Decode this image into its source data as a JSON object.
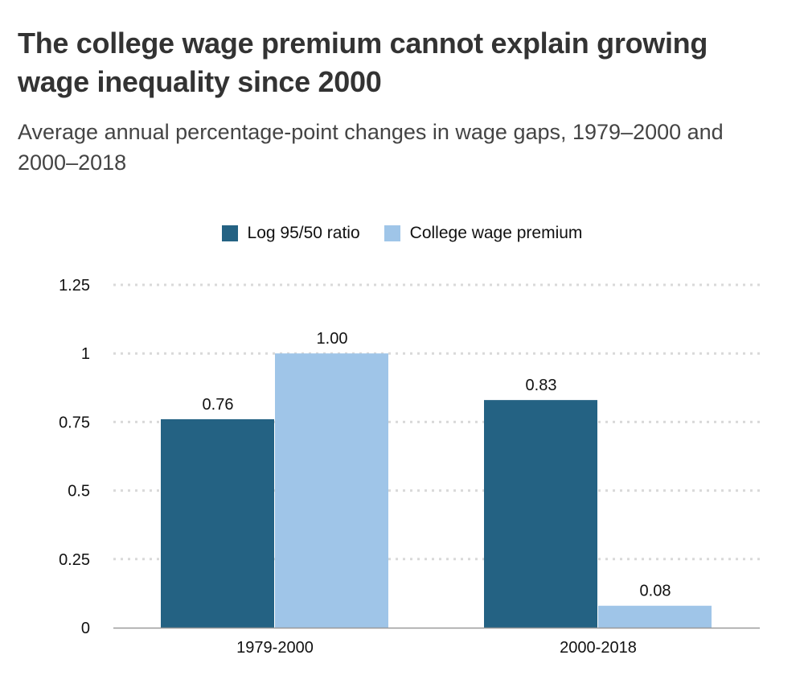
{
  "chart_data": {
    "type": "bar",
    "title": "The college wage premium cannot explain growing wage inequality since 2000",
    "subtitle": "Average annual percentage-point changes in wage gaps, 1979–2000 and 2000–2018",
    "xlabel": "",
    "ylabel": "",
    "categories": [
      "1979-2000",
      "2000-2018"
    ],
    "series": [
      {
        "name": "Log 95/50 ratio",
        "color": "#246283",
        "values": [
          0.76,
          0.83
        ],
        "labels": [
          "0.76",
          "0.83"
        ]
      },
      {
        "name": "College wage premium",
        "color": "#9fc5e8",
        "values": [
          1.0,
          0.08
        ],
        "labels": [
          "1.00",
          "0.08"
        ]
      }
    ],
    "ylim": [
      0,
      1.25
    ],
    "yticks": [
      0,
      0.25,
      0.5,
      0.75,
      1,
      1.25
    ],
    "ytick_labels": [
      "0",
      "0.25",
      "0.5",
      "0.75",
      "1",
      "1.25"
    ],
    "grid": true,
    "legend_position": "top-center"
  }
}
